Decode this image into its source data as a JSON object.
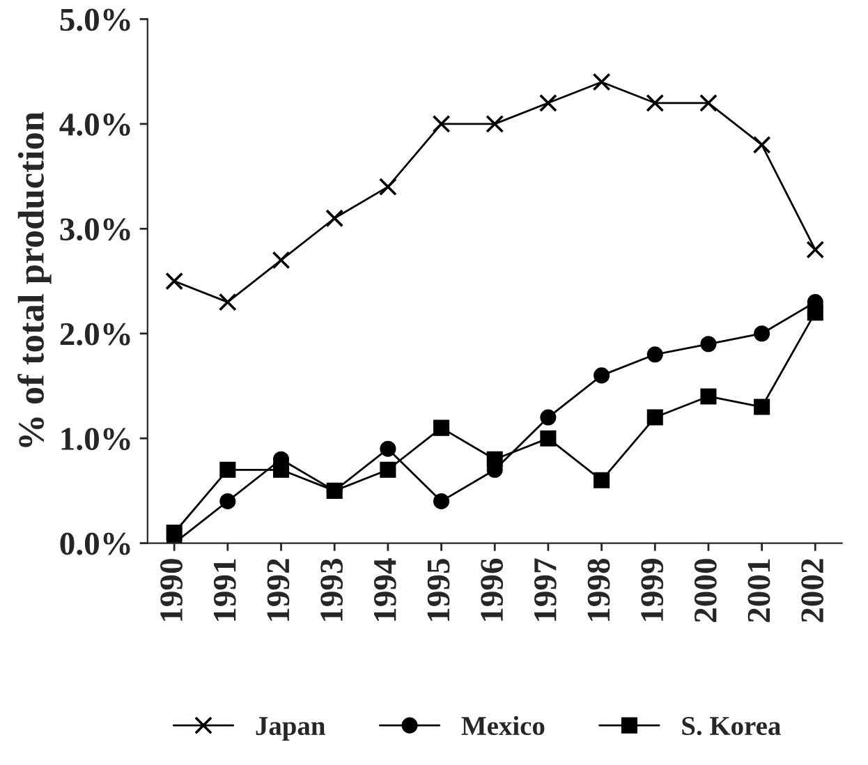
{
  "chart_data": {
    "type": "line",
    "ylabel": "% of total production",
    "categories": [
      "1990",
      "1991",
      "1992",
      "1993",
      "1994",
      "1995",
      "1996",
      "1997",
      "1998",
      "1999",
      "2000",
      "2001",
      "2002"
    ],
    "series": [
      {
        "name": "Japan",
        "color": "#000000",
        "marker": "cross",
        "values": [
          2.5,
          2.3,
          2.7,
          3.1,
          3.4,
          4.0,
          4.0,
          4.2,
          4.4,
          4.2,
          4.2,
          3.8,
          2.8
        ]
      },
      {
        "name": "Mexico",
        "color": "#000000",
        "marker": "circle",
        "values": [
          0.0,
          0.4,
          0.8,
          0.5,
          0.9,
          0.4,
          0.7,
          1.2,
          1.6,
          1.8,
          1.9,
          2.0,
          2.3
        ]
      },
      {
        "name": "S. Korea",
        "color": "#000000",
        "marker": "square",
        "values": [
          0.1,
          0.7,
          0.7,
          0.5,
          0.7,
          1.1,
          0.8,
          1.0,
          0.6,
          1.2,
          1.4,
          1.3,
          2.2
        ]
      }
    ],
    "ylim": [
      0,
      5
    ],
    "yticks": [
      {
        "value": 0,
        "label": "0.0%"
      },
      {
        "value": 1,
        "label": "1.0%"
      },
      {
        "value": 2,
        "label": "2.0%"
      },
      {
        "value": 3,
        "label": "3.0%"
      },
      {
        "value": 4,
        "label": "4.0%"
      },
      {
        "value": 5,
        "label": "5.0%"
      }
    ],
    "grid": false,
    "legend": "bottom",
    "line_style": "solid"
  }
}
